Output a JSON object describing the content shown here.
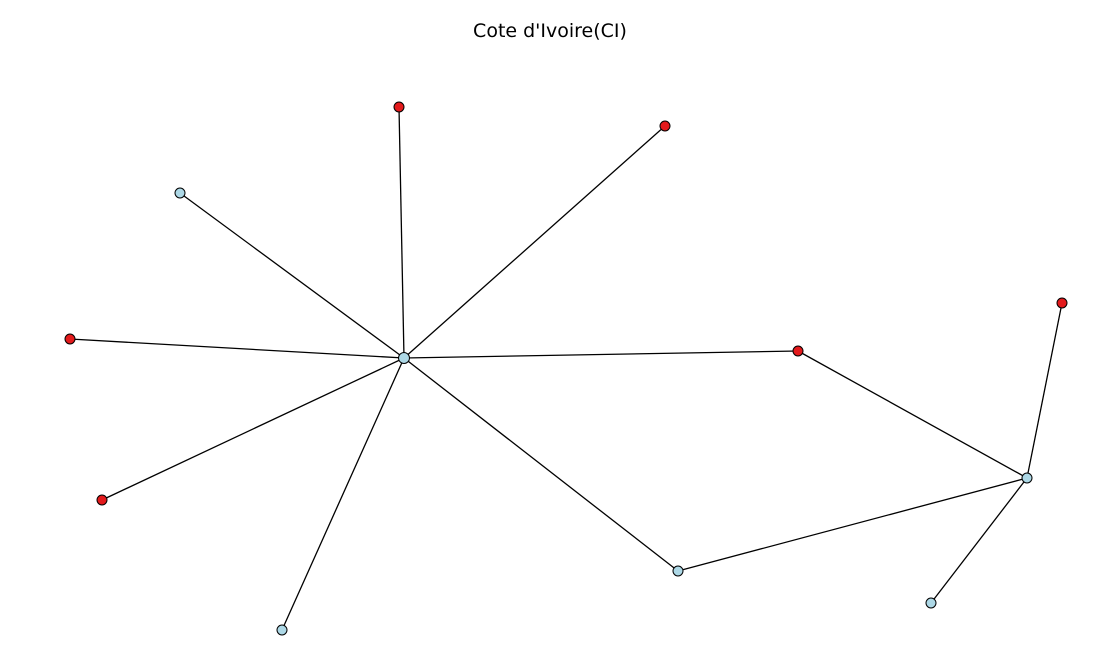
{
  "title": "Cote d'Ivoire(CI)",
  "colors": {
    "red_node": "#e31a1c",
    "blue_node": "#add8e6",
    "edge": "#000000",
    "background": "#ffffff"
  },
  "graph": {
    "nodes": [
      {
        "id": "n0",
        "group": "blue"
      },
      {
        "id": "n1",
        "group": "red"
      },
      {
        "id": "n2",
        "group": "red"
      },
      {
        "id": "n3",
        "group": "blue"
      },
      {
        "id": "n4",
        "group": "red"
      },
      {
        "id": "n5",
        "group": "red"
      },
      {
        "id": "n6",
        "group": "blue"
      },
      {
        "id": "n7",
        "group": "red"
      },
      {
        "id": "n8",
        "group": "blue"
      },
      {
        "id": "n9",
        "group": "blue"
      },
      {
        "id": "n10",
        "group": "red"
      },
      {
        "id": "n11",
        "group": "blue"
      }
    ],
    "edges": [
      [
        "n0",
        "n1"
      ],
      [
        "n0",
        "n2"
      ],
      [
        "n0",
        "n3"
      ],
      [
        "n0",
        "n4"
      ],
      [
        "n0",
        "n5"
      ],
      [
        "n0",
        "n6"
      ],
      [
        "n0",
        "n7"
      ],
      [
        "n0",
        "n8"
      ],
      [
        "n7",
        "n9"
      ],
      [
        "n8",
        "n9"
      ],
      [
        "n9",
        "n10"
      ],
      [
        "n9",
        "n11"
      ]
    ]
  }
}
